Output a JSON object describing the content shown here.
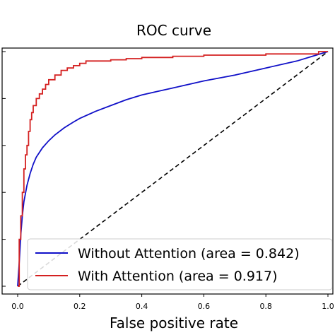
{
  "chart_data": {
    "type": "line",
    "title": "ROC curve",
    "xlabel": "False positive rate",
    "ylabel": "",
    "xlim": [
      0,
      1
    ],
    "ylim": [
      0,
      1
    ],
    "x_ticks": [
      "0.0",
      "0.2",
      "0.4",
      "0.6",
      "0.8",
      "1.0"
    ],
    "grid": false,
    "legend_position": "lower right",
    "series": [
      {
        "name": "Without Attention (area = 0.842)",
        "color": "#1010c8",
        "x": [
          0,
          0.005,
          0.01,
          0.015,
          0.02,
          0.03,
          0.04,
          0.05,
          0.06,
          0.08,
          0.1,
          0.12,
          0.15,
          0.18,
          0.2,
          0.25,
          0.3,
          0.35,
          0.4,
          0.45,
          0.5,
          0.55,
          0.6,
          0.7,
          0.8,
          0.9,
          0.95,
          1.0
        ],
        "y": [
          0,
          0.1,
          0.22,
          0.3,
          0.36,
          0.43,
          0.48,
          0.52,
          0.55,
          0.59,
          0.62,
          0.645,
          0.675,
          0.7,
          0.715,
          0.745,
          0.77,
          0.795,
          0.815,
          0.83,
          0.845,
          0.86,
          0.875,
          0.9,
          0.93,
          0.96,
          0.98,
          1.0
        ]
      },
      {
        "name": "With Attention (area = 0.917)",
        "color": "#d42020",
        "x": [
          0,
          0.005,
          0.005,
          0.01,
          0.01,
          0.015,
          0.015,
          0.02,
          0.02,
          0.025,
          0.025,
          0.03,
          0.03,
          0.035,
          0.035,
          0.04,
          0.04,
          0.045,
          0.045,
          0.05,
          0.05,
          0.06,
          0.06,
          0.07,
          0.07,
          0.08,
          0.08,
          0.09,
          0.09,
          0.1,
          0.1,
          0.12,
          0.12,
          0.14,
          0.14,
          0.16,
          0.16,
          0.18,
          0.18,
          0.2,
          0.2,
          0.22,
          0.22,
          0.3,
          0.3,
          0.35,
          0.35,
          0.4,
          0.4,
          0.5,
          0.5,
          0.6,
          0.6,
          0.8,
          0.8,
          0.97,
          0.97,
          1.0
        ],
        "y": [
          0,
          0,
          0.2,
          0.2,
          0.3,
          0.3,
          0.4,
          0.4,
          0.5,
          0.5,
          0.56,
          0.56,
          0.6,
          0.6,
          0.66,
          0.66,
          0.71,
          0.71,
          0.74,
          0.74,
          0.77,
          0.77,
          0.8,
          0.8,
          0.82,
          0.82,
          0.84,
          0.84,
          0.86,
          0.86,
          0.88,
          0.88,
          0.9,
          0.9,
          0.92,
          0.92,
          0.93,
          0.93,
          0.94,
          0.94,
          0.95,
          0.95,
          0.96,
          0.96,
          0.965,
          0.965,
          0.97,
          0.97,
          0.975,
          0.975,
          0.98,
          0.98,
          0.985,
          0.985,
          0.99,
          0.99,
          1.0,
          1.0
        ]
      },
      {
        "name": "",
        "color": "#000000",
        "dashed": true,
        "x": [
          0,
          1
        ],
        "y": [
          0,
          1
        ]
      }
    ]
  }
}
